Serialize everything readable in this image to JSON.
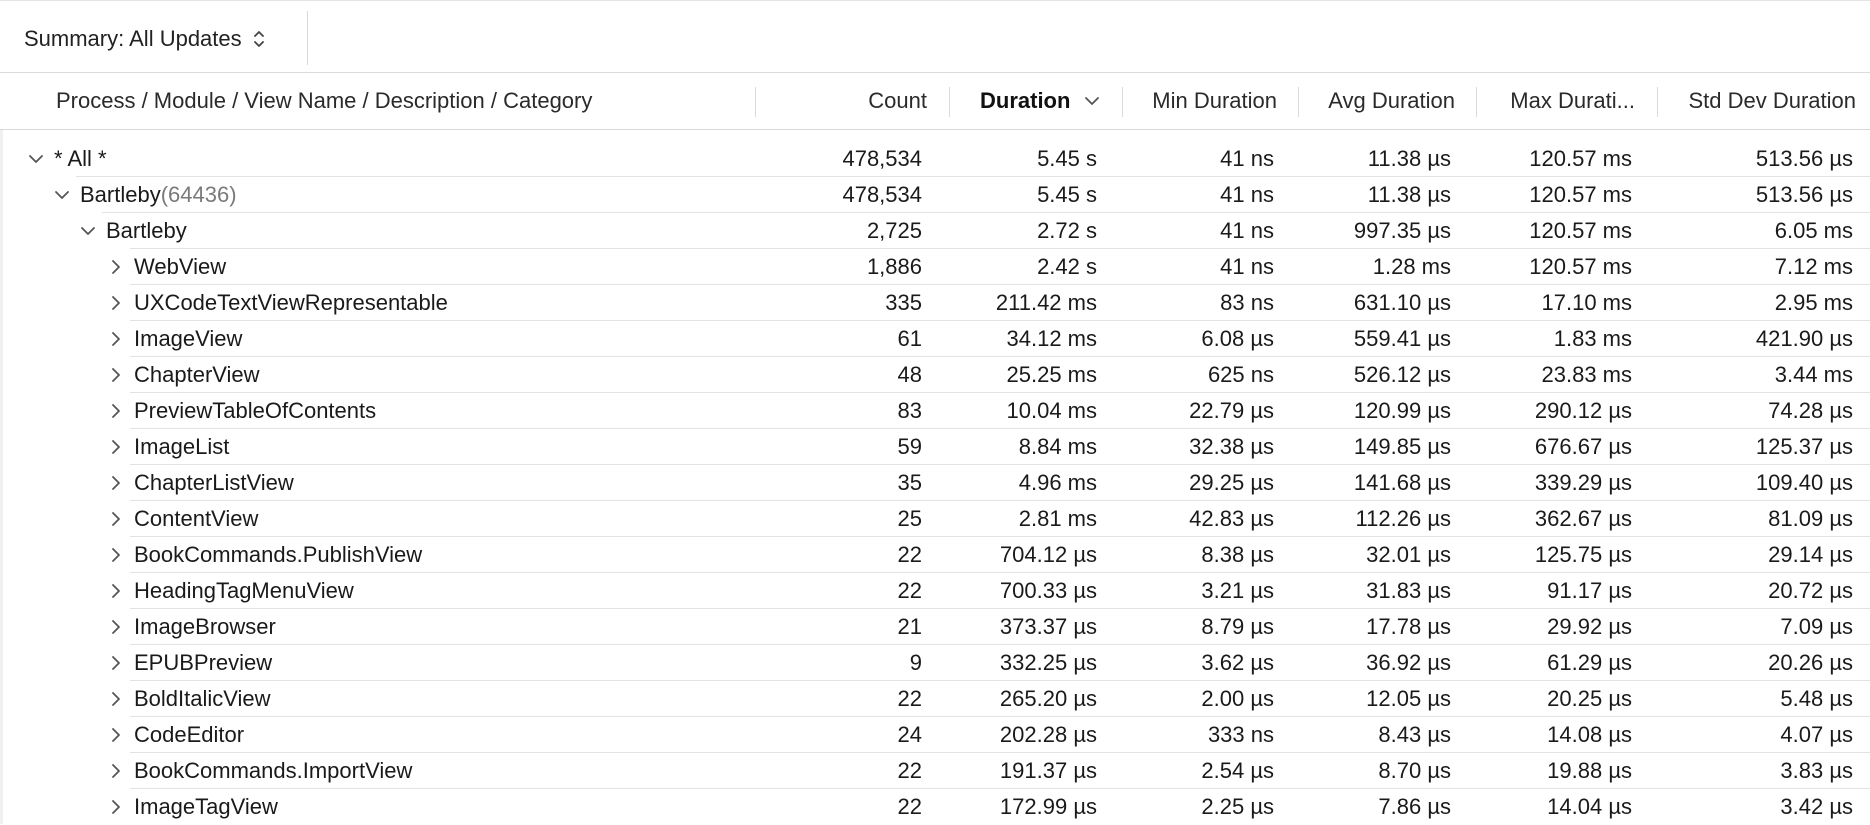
{
  "toolbar": {
    "summary_label": "Summary: All Updates"
  },
  "columns": [
    {
      "label": "Process / Module / View Name / Description / Category"
    },
    {
      "label": "Count"
    },
    {
      "label": "Duration"
    },
    {
      "label": "Min Duration"
    },
    {
      "label": "Avg Duration"
    },
    {
      "label": "Max Durati..."
    },
    {
      "label": "Std Dev Duration"
    }
  ],
  "rows": [
    {
      "name": "* All *",
      "pid": "",
      "depth": 0,
      "expanded": true,
      "count": "478,534",
      "duration": "5.45 s",
      "min": "41 ns",
      "avg": "11.38 µs",
      "max": "120.57 ms",
      "std": "513.56 µs"
    },
    {
      "name": "Bartleby",
      "pid": "(64436)",
      "depth": 1,
      "expanded": true,
      "count": "478,534",
      "duration": "5.45 s",
      "min": "41 ns",
      "avg": "11.38 µs",
      "max": "120.57 ms",
      "std": "513.56 µs"
    },
    {
      "name": "Bartleby",
      "pid": "",
      "depth": 2,
      "expanded": true,
      "count": "2,725",
      "duration": "2.72 s",
      "min": "41 ns",
      "avg": "997.35 µs",
      "max": "120.57 ms",
      "std": "6.05 ms"
    },
    {
      "name": "WebView",
      "pid": "",
      "depth": 3,
      "expanded": false,
      "count": "1,886",
      "duration": "2.42 s",
      "min": "41 ns",
      "avg": "1.28 ms",
      "max": "120.57 ms",
      "std": "7.12 ms"
    },
    {
      "name": "UXCodeTextViewRepresentable",
      "pid": "",
      "depth": 3,
      "expanded": false,
      "count": "335",
      "duration": "211.42 ms",
      "min": "83 ns",
      "avg": "631.10 µs",
      "max": "17.10 ms",
      "std": "2.95 ms"
    },
    {
      "name": "ImageView",
      "pid": "",
      "depth": 3,
      "expanded": false,
      "count": "61",
      "duration": "34.12 ms",
      "min": "6.08 µs",
      "avg": "559.41 µs",
      "max": "1.83 ms",
      "std": "421.90 µs"
    },
    {
      "name": "ChapterView",
      "pid": "",
      "depth": 3,
      "expanded": false,
      "count": "48",
      "duration": "25.25 ms",
      "min": "625 ns",
      "avg": "526.12 µs",
      "max": "23.83 ms",
      "std": "3.44 ms"
    },
    {
      "name": "PreviewTableOfContents",
      "pid": "",
      "depth": 3,
      "expanded": false,
      "count": "83",
      "duration": "10.04 ms",
      "min": "22.79 µs",
      "avg": "120.99 µs",
      "max": "290.12 µs",
      "std": "74.28 µs"
    },
    {
      "name": "ImageList",
      "pid": "",
      "depth": 3,
      "expanded": false,
      "count": "59",
      "duration": "8.84 ms",
      "min": "32.38 µs",
      "avg": "149.85 µs",
      "max": "676.67 µs",
      "std": "125.37 µs"
    },
    {
      "name": "ChapterListView",
      "pid": "",
      "depth": 3,
      "expanded": false,
      "count": "35",
      "duration": "4.96 ms",
      "min": "29.25 µs",
      "avg": "141.68 µs",
      "max": "339.29 µs",
      "std": "109.40 µs"
    },
    {
      "name": "ContentView",
      "pid": "",
      "depth": 3,
      "expanded": false,
      "count": "25",
      "duration": "2.81 ms",
      "min": "42.83 µs",
      "avg": "112.26 µs",
      "max": "362.67 µs",
      "std": "81.09 µs"
    },
    {
      "name": "BookCommands.PublishView",
      "pid": "",
      "depth": 3,
      "expanded": false,
      "count": "22",
      "duration": "704.12 µs",
      "min": "8.38 µs",
      "avg": "32.01 µs",
      "max": "125.75 µs",
      "std": "29.14 µs"
    },
    {
      "name": "HeadingTagMenuView",
      "pid": "",
      "depth": 3,
      "expanded": false,
      "count": "22",
      "duration": "700.33 µs",
      "min": "3.21 µs",
      "avg": "31.83 µs",
      "max": "91.17 µs",
      "std": "20.72 µs"
    },
    {
      "name": "ImageBrowser",
      "pid": "",
      "depth": 3,
      "expanded": false,
      "count": "21",
      "duration": "373.37 µs",
      "min": "8.79 µs",
      "avg": "17.78 µs",
      "max": "29.92 µs",
      "std": "7.09 µs"
    },
    {
      "name": "EPUBPreview",
      "pid": "",
      "depth": 3,
      "expanded": false,
      "count": "9",
      "duration": "332.25 µs",
      "min": "3.62 µs",
      "avg": "36.92 µs",
      "max": "61.29 µs",
      "std": "20.26 µs"
    },
    {
      "name": "BoldItalicView",
      "pid": "",
      "depth": 3,
      "expanded": false,
      "count": "22",
      "duration": "265.20 µs",
      "min": "2.00 µs",
      "avg": "12.05 µs",
      "max": "20.25 µs",
      "std": "5.48 µs"
    },
    {
      "name": "CodeEditor",
      "pid": "",
      "depth": 3,
      "expanded": false,
      "count": "24",
      "duration": "202.28 µs",
      "min": "333 ns",
      "avg": "8.43 µs",
      "max": "14.08 µs",
      "std": "4.07 µs"
    },
    {
      "name": "BookCommands.ImportView",
      "pid": "",
      "depth": 3,
      "expanded": false,
      "count": "22",
      "duration": "191.37 µs",
      "min": "2.54 µs",
      "avg": "8.70 µs",
      "max": "19.88 µs",
      "std": "3.83 µs"
    },
    {
      "name": "ImageTagView",
      "pid": "",
      "depth": 3,
      "expanded": false,
      "count": "22",
      "duration": "172.99 µs",
      "min": "2.25 µs",
      "avg": "7.86 µs",
      "max": "14.04 µs",
      "std": "3.42 µs"
    }
  ]
}
